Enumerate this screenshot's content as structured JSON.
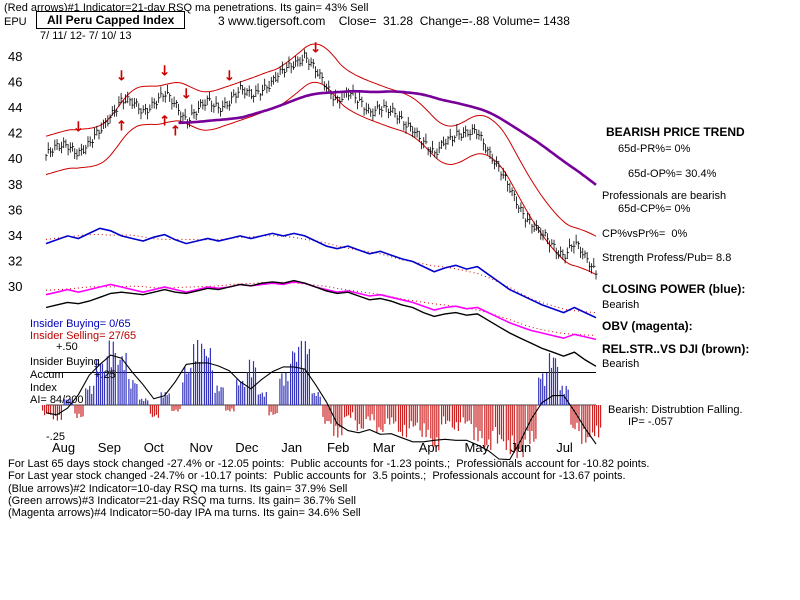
{
  "header": {
    "indicator1_line": "(Red arrows)#1 Indicator=21-day RSQ ma penetrations. Its gain= 43% Sell",
    "symbol": "EPU",
    "index_name": "All Peru Capped Index",
    "site_info": "3 www.tigersoft.com    Close=  31.28  Change=-.88 Volume= 1438",
    "date_range": "7/ 11/ 12- 7/ 10/ 13"
  },
  "right_panel": {
    "trend_title": "BEARISH PRICE TREND",
    "pr": "65d-PR%= 0%",
    "op": "65d-OP%= 30.4%",
    "prof_bearish": "Professionals are bearish",
    "cp": "65d-CP%= 0%",
    "cpvspr": "CP%vsPr%=  0%",
    "strength": "Strength Profess/Pub= 8.8",
    "closing_power_title": "CLOSING POWER (blue):",
    "closing_power_state": "Bearish",
    "obv_title": "OBV (magenta):",
    "relstr_title": "REL.STR..VS DJI (brown):",
    "relstr_state": "Bearish",
    "distribution": "Bearish: Distrubtion Falling.",
    "ip": "IP= -.057"
  },
  "left_panel": {
    "insider_buying": "Insider Buying= 0/65",
    "insider_selling": "Insider Selling= 27/65",
    "plus50": "+.50",
    "accum_line1": "Insider Buying",
    "accum_line2": "Accum",
    "plus25": "+.25",
    "accum_line3": "Index",
    "ai": "AI= 84/200",
    "minus25": "-.25"
  },
  "footer": {
    "lines": [
      "For Last 65 days stock changed -27.4% or -12.05 points:  Public accounts for -1.23 points.;  Professionals account for -10.82 points.",
      "For Last year stock changed -24.7% or -10.17 points:  Public accounts for  3.5 points.;  Professionals account for -13.67 points.",
      "(Blue arrows)#2 Indicator=10-day RSQ ma turns. Its gain= 37.9% Sell",
      "(Green arrows)#3 Indicator=21-day RSQ ma turns. Its gain= 36.7% Sell",
      "(Magenta arrows)#4 Indicator=50-day IPA ma turns. Its gain= 34.6% Sell"
    ]
  },
  "chart_data": {
    "type": "candlestick",
    "title": "All Peru Capped Index (EPU)",
    "date_range": "7/ 11/ 12- 7/ 10/ 13",
    "close_last": 31.28,
    "change": -0.88,
    "volume": 1438,
    "price_ticks": [
      48,
      46,
      44,
      42,
      40,
      38,
      36,
      34,
      32,
      30
    ],
    "ylim": [
      29,
      49
    ],
    "months": [
      "Aug",
      "Sep",
      "Oct",
      "Nov",
      "Dec",
      "Jan",
      "Feb",
      "Mar",
      "Apr",
      "May",
      "Jun",
      "Jul"
    ],
    "x_unit": "weekly estimates, Jul 2012 - Jul 2013",
    "close": [
      40.3,
      40.8,
      41.2,
      40.6,
      41.0,
      42.2,
      43.6,
      44.6,
      44.3,
      43.8,
      44.5,
      45.0,
      44.2,
      43.2,
      43.8,
      44.4,
      44.1,
      44.6,
      45.3,
      45.0,
      45.6,
      46.0,
      46.8,
      47.6,
      48.2,
      46.8,
      45.6,
      44.8,
      45.2,
      44.4,
      43.8,
      44.2,
      43.6,
      43.0,
      42.6,
      41.2,
      40.2,
      41.6,
      42.0,
      41.8,
      42.2,
      40.8,
      39.2,
      37.6,
      36.2,
      35.0,
      34.0,
      33.2,
      32.6,
      33.4,
      32.2,
      31.3
    ],
    "closing_power": [
      33.4,
      33.7,
      34.0,
      33.8,
      34.2,
      34.6,
      34.4,
      34.0,
      33.8,
      33.6,
      33.9,
      34.1,
      33.7,
      33.4,
      33.6,
      33.8,
      33.6,
      33.8,
      34.0,
      33.8,
      34.0,
      34.2,
      34.0,
      34.2,
      34.0,
      33.6,
      33.2,
      33.0,
      33.2,
      32.9,
      32.6,
      32.8,
      32.5,
      32.2,
      32.0,
      31.6,
      31.2,
      31.5,
      31.7,
      31.4,
      31.6,
      31.0,
      30.4,
      29.8,
      29.4,
      29.0,
      28.6,
      28.3,
      28.0,
      28.4,
      28.0,
      27.6
    ],
    "obv": [
      29.4,
      29.6,
      29.8,
      29.6,
      29.8,
      30.0,
      30.2,
      30.0,
      29.8,
      29.6,
      29.8,
      30.0,
      29.8,
      29.6,
      29.8,
      30.0,
      29.9,
      30.0,
      30.2,
      30.1,
      30.2,
      30.3,
      30.2,
      30.4,
      30.3,
      30.0,
      29.8,
      29.6,
      29.7,
      29.5,
      29.3,
      29.4,
      29.2,
      29.0,
      28.8,
      28.5,
      28.2,
      28.4,
      28.5,
      28.3,
      28.4,
      28.0,
      27.6,
      27.2,
      26.9,
      26.6,
      26.4,
      26.2,
      26.0,
      26.3,
      26.1,
      25.9
    ],
    "rel_str": [
      28.4,
      28.6,
      28.8,
      28.7,
      28.9,
      29.2,
      29.5,
      29.6,
      29.5,
      29.4,
      29.6,
      29.8,
      29.6,
      29.5,
      29.7,
      29.9,
      29.8,
      30.0,
      30.2,
      30.1,
      30.3,
      30.4,
      30.3,
      30.5,
      30.3,
      30.0,
      29.7,
      29.5,
      29.6,
      29.3,
      29.0,
      29.1,
      28.9,
      28.6,
      28.4,
      28.0,
      27.7,
      27.9,
      28.0,
      27.8,
      27.9,
      27.4,
      26.9,
      26.4,
      26.0,
      25.6,
      25.2,
      24.9,
      24.6,
      24.9,
      24.3,
      23.8
    ],
    "accum": [
      -0.08,
      -0.12,
      0.05,
      -0.1,
      0.15,
      0.35,
      0.5,
      0.4,
      0.2,
      0.05,
      -0.1,
      0.1,
      -0.05,
      0.3,
      0.5,
      0.45,
      0.15,
      -0.05,
      0.2,
      0.35,
      0.1,
      -0.08,
      0.25,
      0.45,
      0.5,
      0.1,
      -0.15,
      -0.25,
      -0.1,
      -0.2,
      -0.12,
      -0.22,
      -0.15,
      -0.25,
      -0.18,
      -0.25,
      -0.35,
      -0.15,
      -0.2,
      -0.15,
      -0.28,
      -0.35,
      -0.3,
      -0.38,
      -0.42,
      -0.3,
      0.25,
      0.4,
      0.15,
      -0.2,
      -0.3,
      -0.25
    ],
    "accum_ticks": [
      "+.50",
      "+.25",
      "-.25"
    ],
    "arrows": [
      {
        "w": 3,
        "dir": "down"
      },
      {
        "w": 7,
        "dir": "down"
      },
      {
        "w": 11,
        "dir": "down"
      },
      {
        "w": 13,
        "dir": "down"
      },
      {
        "w": 17,
        "dir": "down"
      },
      {
        "w": 25,
        "dir": "down"
      },
      {
        "w": 7,
        "dir": "up"
      },
      {
        "w": 11,
        "dir": "up"
      },
      {
        "w": 12,
        "dir": "up"
      }
    ],
    "colors": {
      "candle": "#000000",
      "band": "#cc0000",
      "ma": "#770099",
      "closing_power": "#0000cc",
      "obv": "#ff00ff",
      "rel_str": "#000000",
      "hist_pos": "#3333bb",
      "hist_neg": "#cc2222",
      "arrow": "#cc0000"
    }
  }
}
